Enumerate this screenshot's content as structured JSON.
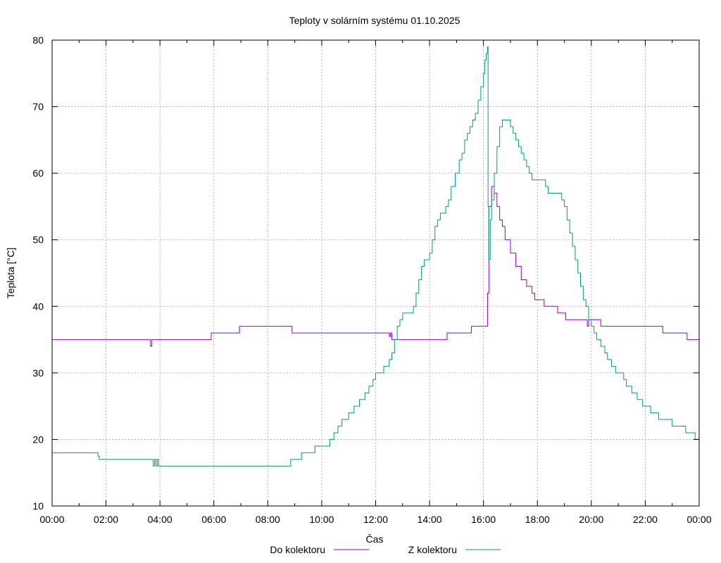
{
  "chart_data": {
    "type": "line",
    "title": "Teploty v solárním systému 01.10.2025",
    "xlabel": "Čas",
    "ylabel": "Teplota [°C]",
    "xlim": [
      0,
      24
    ],
    "ylim": [
      10,
      80
    ],
    "grid": true,
    "legend_position": "bottom-center",
    "x_ticks": [
      {
        "value": 0,
        "label": "00:00"
      },
      {
        "value": 2,
        "label": "02:00"
      },
      {
        "value": 4,
        "label": "04:00"
      },
      {
        "value": 6,
        "label": "06:00"
      },
      {
        "value": 8,
        "label": "08:00"
      },
      {
        "value": 10,
        "label": "10:00"
      },
      {
        "value": 12,
        "label": "12:00"
      },
      {
        "value": 14,
        "label": "14:00"
      },
      {
        "value": 16,
        "label": "16:00"
      },
      {
        "value": 18,
        "label": "18:00"
      },
      {
        "value": 20,
        "label": "20:00"
      },
      {
        "value": 22,
        "label": "22:00"
      },
      {
        "value": 24,
        "label": "00:00"
      }
    ],
    "y_ticks": [
      {
        "value": 10,
        "label": "10"
      },
      {
        "value": 20,
        "label": "20"
      },
      {
        "value": 30,
        "label": "30"
      },
      {
        "value": 40,
        "label": "40"
      },
      {
        "value": 50,
        "label": "50"
      },
      {
        "value": 60,
        "label": "60"
      },
      {
        "value": 70,
        "label": "70"
      },
      {
        "value": 80,
        "label": "80"
      }
    ],
    "series": [
      {
        "name": "Do kolektoru",
        "color": "#9400d3",
        "step": true,
        "points": [
          [
            0,
            35
          ],
          [
            3.6,
            35
          ],
          [
            3.65,
            34
          ],
          [
            3.7,
            35
          ],
          [
            5.85,
            35
          ],
          [
            5.9,
            36
          ],
          [
            6.9,
            36
          ],
          [
            6.95,
            37
          ],
          [
            8.8,
            37
          ],
          [
            8.9,
            36
          ],
          [
            12.4,
            36
          ],
          [
            12.5,
            35.5
          ],
          [
            12.55,
            36
          ],
          [
            12.6,
            35
          ],
          [
            14.6,
            35
          ],
          [
            14.65,
            36
          ],
          [
            15.5,
            36
          ],
          [
            15.55,
            37
          ],
          [
            16.1,
            37
          ],
          [
            16.15,
            42
          ],
          [
            16.2,
            55
          ],
          [
            16.3,
            58
          ],
          [
            16.4,
            57
          ],
          [
            16.5,
            55
          ],
          [
            16.6,
            53
          ],
          [
            16.7,
            52
          ],
          [
            16.8,
            50
          ],
          [
            17.0,
            48
          ],
          [
            17.2,
            46
          ],
          [
            17.4,
            44
          ],
          [
            17.6,
            43
          ],
          [
            17.8,
            42
          ],
          [
            17.9,
            41
          ],
          [
            18.2,
            41
          ],
          [
            18.25,
            40
          ],
          [
            18.7,
            40
          ],
          [
            18.75,
            39
          ],
          [
            19.0,
            39
          ],
          [
            19.05,
            38
          ],
          [
            19.8,
            38
          ],
          [
            19.85,
            37
          ],
          [
            19.9,
            38
          ],
          [
            20.3,
            38
          ],
          [
            20.35,
            37
          ],
          [
            22.6,
            37
          ],
          [
            22.65,
            36
          ],
          [
            23.5,
            36
          ],
          [
            23.55,
            35
          ],
          [
            24,
            35
          ]
        ]
      },
      {
        "name": "Z kolektoru",
        "color": "#009e73",
        "step": true,
        "points": [
          [
            0,
            18
          ],
          [
            1.65,
            18
          ],
          [
            1.7,
            17.5
          ],
          [
            1.75,
            17
          ],
          [
            3.7,
            17
          ],
          [
            3.75,
            16
          ],
          [
            3.8,
            17
          ],
          [
            3.85,
            16
          ],
          [
            3.9,
            17
          ],
          [
            3.95,
            16
          ],
          [
            8.8,
            16
          ],
          [
            8.85,
            17
          ],
          [
            9.2,
            17
          ],
          [
            9.25,
            18
          ],
          [
            9.7,
            18
          ],
          [
            9.75,
            19
          ],
          [
            10.1,
            19
          ],
          [
            10.3,
            20
          ],
          [
            10.45,
            21
          ],
          [
            10.6,
            22
          ],
          [
            10.75,
            23
          ],
          [
            11.0,
            24
          ],
          [
            11.2,
            25
          ],
          [
            11.4,
            26
          ],
          [
            11.6,
            27
          ],
          [
            11.75,
            28
          ],
          [
            11.9,
            29
          ],
          [
            12.0,
            30
          ],
          [
            12.3,
            31
          ],
          [
            12.5,
            32
          ],
          [
            12.6,
            33
          ],
          [
            12.7,
            35
          ],
          [
            12.8,
            37
          ],
          [
            12.9,
            38
          ],
          [
            13.0,
            39
          ],
          [
            13.4,
            40
          ],
          [
            13.5,
            42
          ],
          [
            13.6,
            44
          ],
          [
            13.7,
            46
          ],
          [
            13.8,
            47
          ],
          [
            14.0,
            48
          ],
          [
            14.1,
            50
          ],
          [
            14.2,
            52
          ],
          [
            14.3,
            53
          ],
          [
            14.4,
            54
          ],
          [
            14.6,
            55
          ],
          [
            14.7,
            56
          ],
          [
            14.8,
            58
          ],
          [
            14.95,
            60
          ],
          [
            15.1,
            62
          ],
          [
            15.2,
            63
          ],
          [
            15.3,
            65
          ],
          [
            15.4,
            66
          ],
          [
            15.5,
            67
          ],
          [
            15.6,
            68
          ],
          [
            15.7,
            69
          ],
          [
            15.8,
            71
          ],
          [
            15.9,
            73
          ],
          [
            16.0,
            75
          ],
          [
            16.05,
            77
          ],
          [
            16.1,
            78
          ],
          [
            16.15,
            79
          ],
          [
            16.17,
            55
          ],
          [
            16.2,
            47
          ],
          [
            16.25,
            53
          ],
          [
            16.3,
            56
          ],
          [
            16.4,
            60
          ],
          [
            16.5,
            64
          ],
          [
            16.6,
            67
          ],
          [
            16.7,
            68
          ],
          [
            16.9,
            68
          ],
          [
            17.0,
            67
          ],
          [
            17.1,
            66
          ],
          [
            17.2,
            65
          ],
          [
            17.3,
            64
          ],
          [
            17.4,
            63
          ],
          [
            17.5,
            62
          ],
          [
            17.6,
            61
          ],
          [
            17.7,
            60
          ],
          [
            17.8,
            59
          ],
          [
            18.2,
            59
          ],
          [
            18.3,
            58
          ],
          [
            18.4,
            57
          ],
          [
            18.8,
            57
          ],
          [
            18.9,
            56
          ],
          [
            19.0,
            55
          ],
          [
            19.1,
            53
          ],
          [
            19.2,
            51
          ],
          [
            19.3,
            49
          ],
          [
            19.4,
            47
          ],
          [
            19.5,
            45
          ],
          [
            19.6,
            43
          ],
          [
            19.7,
            41
          ],
          [
            19.8,
            40
          ],
          [
            19.9,
            38
          ],
          [
            20.0,
            37
          ],
          [
            20.1,
            36
          ],
          [
            20.2,
            35
          ],
          [
            20.35,
            34
          ],
          [
            20.5,
            33
          ],
          [
            20.6,
            32
          ],
          [
            20.75,
            31
          ],
          [
            20.9,
            30
          ],
          [
            21.2,
            29
          ],
          [
            21.3,
            28
          ],
          [
            21.5,
            27
          ],
          [
            21.7,
            26
          ],
          [
            21.9,
            25
          ],
          [
            22.2,
            24
          ],
          [
            22.5,
            23
          ],
          [
            23.0,
            22
          ],
          [
            23.5,
            21
          ],
          [
            23.85,
            20
          ],
          [
            24,
            20
          ]
        ]
      }
    ]
  }
}
